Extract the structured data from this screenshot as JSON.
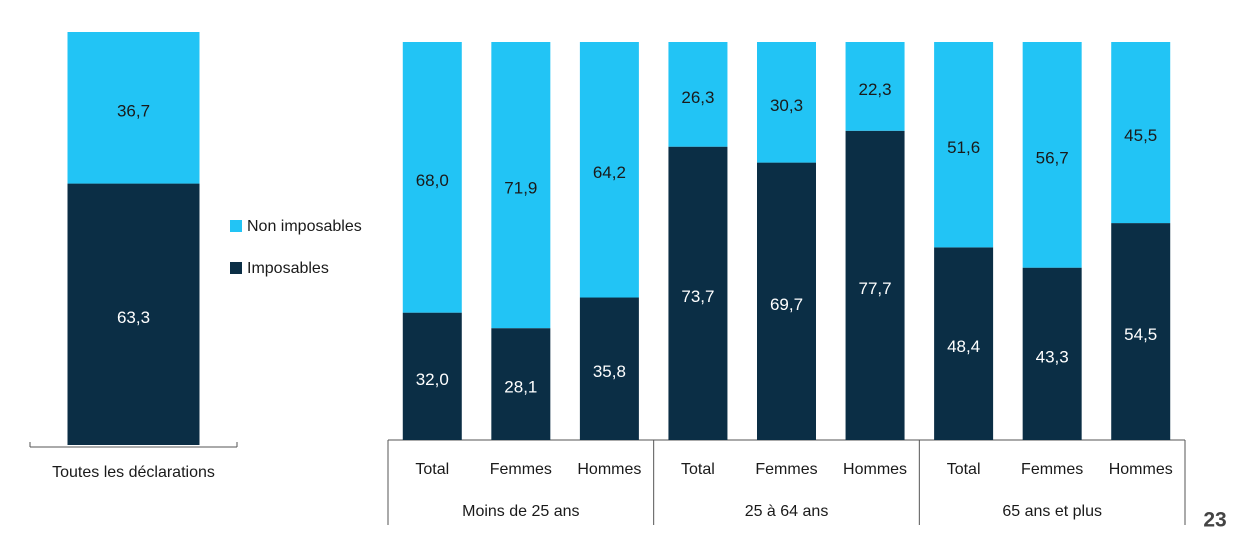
{
  "chart_data": [
    {
      "type": "stacked_bar",
      "categories": [
        "Toutes les déclarations"
      ],
      "ylim": [
        0,
        100
      ],
      "series": [
        {
          "name": "Imposables",
          "color": "#0b2e45",
          "values": [
            63.3
          ],
          "value_labels": [
            "63,3"
          ]
        },
        {
          "name": "Non imposables",
          "color": "#22c4f5",
          "values": [
            36.7
          ],
          "value_labels": [
            "36,7"
          ]
        }
      ]
    },
    {
      "type": "stacked_bar",
      "categories": [
        "Total",
        "Femmes",
        "Hommes",
        "Total",
        "Femmes",
        "Hommes",
        "Total",
        "Femmes",
        "Hommes"
      ],
      "groups": [
        "Moins de 25 ans",
        "25 à 64 ans",
        "65 ans et plus"
      ],
      "ylim": [
        0,
        100
      ],
      "series": [
        {
          "name": "Imposables",
          "color": "#0b2e45",
          "values": [
            32.0,
            28.1,
            35.8,
            73.7,
            69.7,
            77.7,
            48.4,
            43.3,
            54.5
          ],
          "value_labels": [
            "32,0",
            "28,1",
            "35,8",
            "73,7",
            "69,7",
            "77,7",
            "48,4",
            "43,3",
            "54,5"
          ]
        },
        {
          "name": "Non imposables",
          "color": "#22c4f5",
          "values": [
            68.0,
            71.9,
            64.2,
            26.3,
            30.3,
            22.3,
            51.6,
            56.7,
            45.5
          ],
          "value_labels": [
            "68,0",
            "71,9",
            "64,2",
            "26,3",
            "30,3",
            "22,3",
            "51,6",
            "56,7",
            "45,5"
          ]
        }
      ]
    }
  ],
  "page_number": "23"
}
